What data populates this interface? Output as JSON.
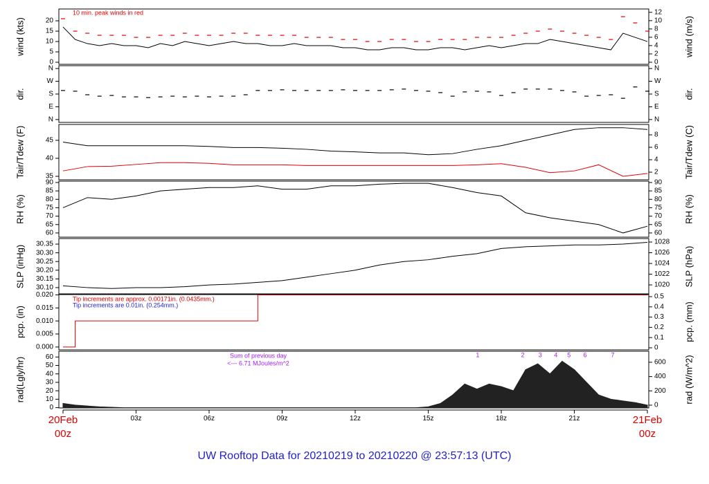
{
  "title": "UW Rooftop Data for 20210219  to  20210220 @ 23:57:13  (UTC)",
  "title_color": "#1f1fd0",
  "xlim": [
    0,
    24
  ],
  "xticks": [
    {
      "value": 0,
      "label": "20Feb\n00z"
    },
    {
      "value": 3,
      "label": "03z"
    },
    {
      "value": 6,
      "label": "06z"
    },
    {
      "value": 9,
      "label": "09z"
    },
    {
      "value": 12,
      "label": "12z"
    },
    {
      "value": 15,
      "label": "15z"
    },
    {
      "value": 18,
      "label": "18z"
    },
    {
      "value": 21,
      "label": "21z"
    },
    {
      "value": 24,
      "label": "21Feb\n00z"
    }
  ],
  "xtick_end_color": "#e00000",
  "chart_data": [
    {
      "type": "line",
      "ylabel": "wind (kts)",
      "y2label": "wind (m/s)",
      "ylim": [
        -1,
        25.7
      ],
      "yticks": [
        0,
        5,
        10,
        15,
        20
      ],
      "y2lim": [
        -0.5,
        12.8
      ],
      "y2ticks": [
        0,
        2,
        4,
        6,
        8,
        10,
        12
      ],
      "annotations": [
        {
          "text": "10 min. peak winds in red",
          "color": "#e00000"
        }
      ],
      "x": [
        0,
        0.5,
        1,
        1.5,
        2,
        2.5,
        3,
        3.5,
        4,
        4.5,
        5,
        5.5,
        6,
        6.5,
        7,
        7.5,
        8,
        8.5,
        9,
        9.5,
        10,
        10.5,
        11,
        11.5,
        12,
        12.5,
        13,
        13.5,
        14,
        14.5,
        15,
        15.5,
        16,
        16.5,
        17,
        17.5,
        18,
        18.5,
        19,
        19.5,
        20,
        20.5,
        21,
        21.5,
        22,
        22.5,
        23,
        23.5,
        24
      ],
      "series": [
        {
          "color": "#000000",
          "values": [
            17,
            11,
            9,
            8,
            9,
            8,
            8,
            7,
            9,
            8,
            10,
            9,
            8,
            9,
            10,
            9,
            9,
            8,
            8,
            9,
            8,
            8,
            8,
            7,
            7,
            6,
            6,
            7,
            7,
            6,
            6,
            7,
            7,
            6,
            7,
            8,
            7,
            8,
            9,
            9,
            11,
            10,
            9,
            8,
            7,
            6,
            14,
            12,
            10
          ]
        },
        {
          "color": "#e00000",
          "marker": "dash",
          "values": [
            21,
            15,
            14,
            13,
            13,
            13,
            12,
            12,
            13,
            13,
            14,
            13,
            13,
            13,
            14,
            14,
            13,
            13,
            13,
            13,
            12,
            12,
            12,
            11,
            11,
            10,
            10,
            11,
            11,
            10,
            10,
            11,
            11,
            11,
            12,
            12,
            12,
            13,
            14,
            15,
            16,
            15,
            14,
            13,
            12,
            11,
            22,
            19,
            15
          ]
        }
      ]
    },
    {
      "type": "scatter",
      "ylabel": "dir.",
      "y2label": "dir.",
      "ylim": [
        -20,
        380
      ],
      "yticks": [
        {
          "value": 0,
          "label": "N"
        },
        {
          "value": 90,
          "label": "E"
        },
        {
          "value": 180,
          "label": "S"
        },
        {
          "value": 270,
          "label": "W"
        },
        {
          "value": 360,
          "label": "N"
        }
      ],
      "y2lim": [
        -20,
        380
      ],
      "y2ticks": [
        {
          "value": 0,
          "label": "N"
        },
        {
          "value": 90,
          "label": "E"
        },
        {
          "value": 180,
          "label": "S"
        },
        {
          "value": 270,
          "label": "W"
        },
        {
          "value": 360,
          "label": "N"
        }
      ],
      "x": [
        0,
        0.5,
        1,
        1.5,
        2,
        2.5,
        3,
        3.5,
        4,
        4.5,
        5,
        5.5,
        6,
        6.5,
        7,
        7.5,
        8,
        8.5,
        9,
        9.5,
        10,
        10.5,
        11,
        11.5,
        12,
        12.5,
        13,
        13.5,
        14,
        14.5,
        15,
        15.5,
        16,
        16.5,
        17,
        17.5,
        18,
        18.5,
        19,
        19.5,
        20,
        20.5,
        21,
        21.5,
        22,
        22.5,
        23,
        23.5,
        24
      ],
      "series": [
        {
          "color": "#000000",
          "values": [
            205,
            200,
            175,
            165,
            170,
            160,
            160,
            155,
            160,
            165,
            160,
            165,
            160,
            165,
            165,
            175,
            205,
            205,
            210,
            205,
            205,
            205,
            205,
            210,
            205,
            205,
            205,
            210,
            215,
            205,
            200,
            190,
            165,
            195,
            200,
            195,
            170,
            190,
            215,
            215,
            215,
            205,
            195,
            165,
            170,
            175,
            150,
            230,
            200
          ]
        }
      ]
    },
    {
      "type": "line",
      "ylabel": "Tair/Tdew (F)",
      "y2label": "Tair/Tdew (C)",
      "ylim": [
        34.04,
        49.4
      ],
      "yticks": [
        35,
        40,
        45
      ],
      "y2lim": [
        0.78,
        9.67
      ],
      "y2ticks": [
        2,
        4,
        6,
        8
      ],
      "x": [
        0,
        1,
        2,
        3,
        4,
        5,
        6,
        7,
        8,
        9,
        10,
        11,
        12,
        13,
        14,
        15,
        16,
        17,
        18,
        19,
        20,
        21,
        22,
        23,
        24
      ],
      "series": [
        {
          "color": "#000000",
          "values": [
            44.5,
            43.5,
            43.5,
            43.5,
            43.5,
            43.5,
            43.3,
            43,
            43,
            42.8,
            42.5,
            42,
            41.8,
            41.5,
            41.5,
            41,
            41.3,
            42.5,
            43.5,
            45,
            46.5,
            48,
            48.5,
            48.5,
            48
          ]
        },
        {
          "color": "#e00000",
          "values": [
            36.5,
            37.7,
            37.8,
            38.3,
            38.8,
            38.8,
            38.6,
            38.2,
            38.2,
            38.2,
            38,
            38,
            38,
            38,
            38,
            38,
            38,
            38.2,
            38.5,
            37.5,
            36,
            36.5,
            38.2,
            35,
            35.8
          ]
        }
      ]
    },
    {
      "type": "line",
      "ylabel": "RH (%)",
      "y2label": "RH (%)",
      "ylim": [
        57.5,
        90.8
      ],
      "yticks": [
        60,
        65,
        70,
        75,
        80,
        85,
        90
      ],
      "y2lim": [
        57.5,
        90.8
      ],
      "y2ticks": [
        60,
        65,
        70,
        75,
        80,
        85,
        90
      ],
      "x": [
        0,
        1,
        2,
        3,
        4,
        5,
        6,
        7,
        8,
        9,
        10,
        11,
        12,
        13,
        14,
        15,
        16,
        17,
        18,
        19,
        20,
        21,
        22,
        23,
        24
      ],
      "series": [
        {
          "color": "#000000",
          "values": [
            75,
            81,
            80,
            82,
            85,
            86,
            87,
            87,
            88,
            86,
            86,
            88,
            88,
            89,
            89.5,
            89.5,
            87,
            84,
            82,
            72,
            69,
            67,
            65,
            60,
            64
          ]
        }
      ]
    },
    {
      "type": "line",
      "ylabel": "SLP (inHg)",
      "y2label": "SLP (hPa)",
      "ylim": [
        30.06,
        30.382
      ],
      "yticks": [
        {
          "value": 30.1,
          "label": "30.10"
        },
        30.15,
        {
          "value": 30.2,
          "label": "30.20"
        },
        30.25,
        {
          "value": 30.3,
          "label": "30.30"
        },
        30.35
      ],
      "y2lim": [
        1018.2,
        1028.65
      ],
      "y2ticks": [
        1020,
        1022,
        1024,
        1026,
        1028
      ],
      "x": [
        0,
        1,
        2,
        3,
        4,
        5,
        6,
        7,
        8,
        9,
        10,
        11,
        12,
        13,
        14,
        15,
        16,
        17,
        18,
        19,
        20,
        21,
        22,
        23,
        24
      ],
      "series": [
        {
          "color": "#000000",
          "values": [
            30.11,
            30.1,
            30.095,
            30.1,
            30.1,
            30.105,
            30.115,
            30.12,
            30.13,
            30.14,
            30.16,
            30.18,
            30.2,
            30.23,
            30.25,
            30.26,
            30.28,
            30.295,
            30.325,
            30.335,
            30.34,
            30.345,
            30.345,
            30.35,
            30.36
          ]
        }
      ]
    },
    {
      "type": "step",
      "ylabel": "pcp. (in)",
      "y2label": "pcp. (mm)",
      "ylim": [
        -0.0011,
        0.0204
      ],
      "yticks": [
        {
          "value": 0,
          "label": "0.000"
        },
        {
          "value": 0.005,
          "label": "0.005"
        },
        {
          "value": 0.01,
          "label": "0.010"
        },
        {
          "value": 0.015,
          "label": "0.015"
        },
        {
          "value": 0.02,
          "label": "0.020"
        }
      ],
      "y2lim": [
        -0.0203,
        0.527
      ],
      "y2ticks": [
        0,
        0.1,
        0.2,
        0.3,
        0.4,
        0.5
      ],
      "annotations": [
        {
          "text": "Tip increments are approx. 0.00171in. (0.0435mm.)",
          "color": "#e00000"
        },
        {
          "text": "Tip increments are 0.01in. (0.254mm.)",
          "color": "#1f1fd0"
        }
      ],
      "x": [
        0,
        0.5,
        8,
        24
      ],
      "series": [
        {
          "color": "#e00000",
          "values": [
            0,
            0.01,
            0.02,
            0.02
          ]
        }
      ]
    },
    {
      "type": "area",
      "ylabel": "rad(Lgly/hr)",
      "y2label": "rad (W/m^2)",
      "ylim": [
        -0.34,
        66.8
      ],
      "yticks": [
        0,
        10,
        20,
        30,
        40,
        50,
        60
      ],
      "y2lim": [
        -39,
        754
      ],
      "y2ticks": [
        0,
        200,
        400,
        600
      ],
      "annotations": [
        {
          "text": "Sum of previous day",
          "color": "#a020f0"
        },
        {
          "text": "<--- 6.71 MJoules/m^2",
          "color": "#a020f0"
        }
      ],
      "markers": [
        {
          "x": 17.03,
          "label": "1"
        },
        {
          "x": 18.88,
          "label": "2"
        },
        {
          "x": 19.6,
          "label": "3"
        },
        {
          "x": 20.24,
          "label": "4"
        },
        {
          "x": 20.78,
          "label": "5"
        },
        {
          "x": 21.44,
          "label": "6"
        },
        {
          "x": 22.58,
          "label": "7"
        }
      ],
      "marker_color": "#a020f0",
      "x": [
        0,
        0.5,
        1,
        1.5,
        2,
        2.5,
        3,
        3.5,
        4,
        4.5,
        5,
        5.5,
        6,
        6.5,
        7,
        7.5,
        8,
        8.5,
        9,
        9.5,
        10,
        10.5,
        11,
        11.5,
        12,
        12.5,
        13,
        13.5,
        14,
        14.5,
        15,
        15.5,
        16,
        16.5,
        17,
        17.5,
        18,
        18.5,
        19,
        19.5,
        20,
        20.5,
        21,
        21.5,
        22,
        22.5,
        23,
        23.5,
        24
      ],
      "series": [
        {
          "color": "#222222",
          "values": [
            5,
            3,
            2,
            1,
            0.5,
            0,
            0,
            0,
            0,
            0,
            0,
            0,
            0,
            0,
            0,
            0,
            0,
            0,
            0,
            0,
            0,
            0,
            0,
            0,
            0,
            0,
            0,
            0,
            0,
            0,
            1,
            5,
            15,
            28,
            22,
            28,
            25,
            20,
            45,
            52,
            40,
            55,
            45,
            30,
            15,
            10,
            8,
            6,
            3
          ]
        }
      ]
    }
  ]
}
